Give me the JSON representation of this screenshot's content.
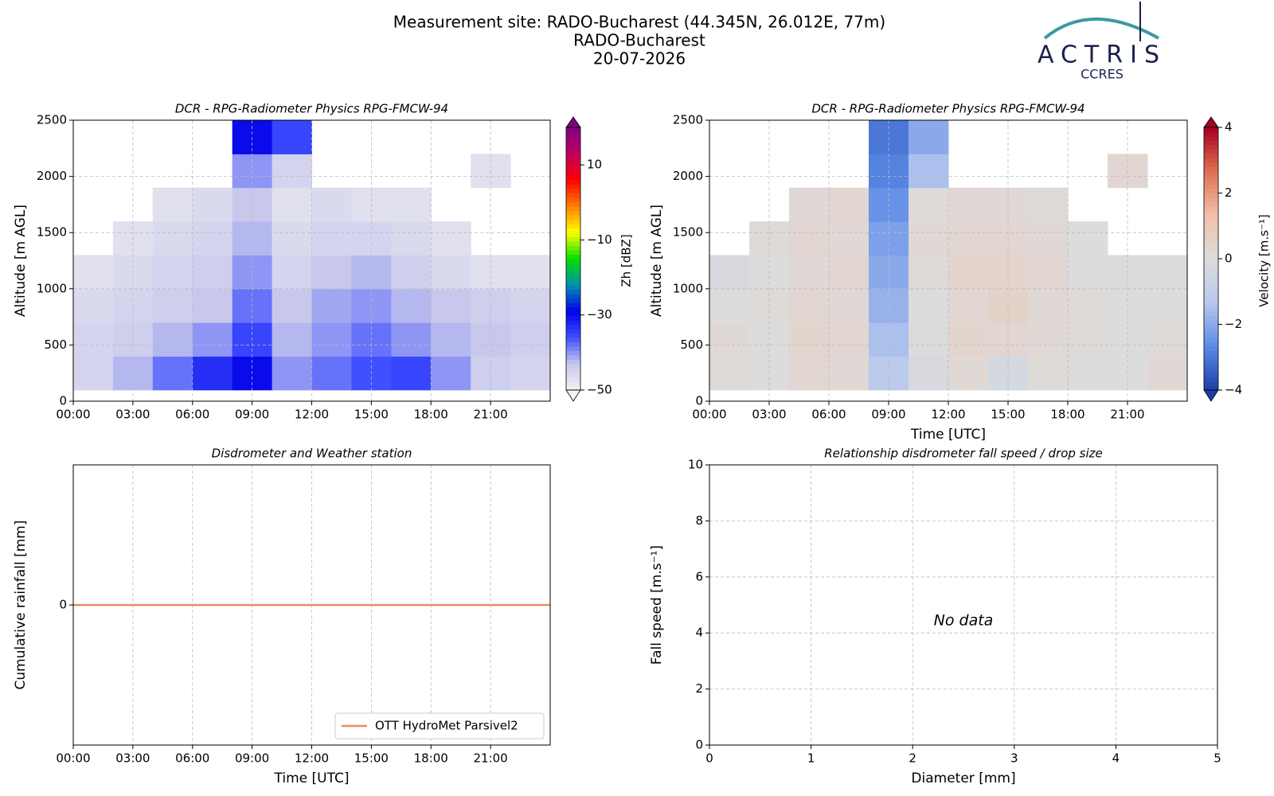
{
  "header": {
    "title": [
      "Measurement site: RADO-Bucharest (44.345N, 26.012E, 77m)",
      "RADO-Bucharest",
      "20-07-2026"
    ],
    "logo_name": "ACTRIS",
    "logo_sub": "CCRES"
  },
  "chart_data": [
    {
      "type": "heatmap",
      "title": "DCR - RPG-Radiometer Physics RPG-FMCW-94",
      "ylabel": "Altitude [m AGL]",
      "xlim": [
        0,
        24
      ],
      "xticks": [
        {
          "value": 0,
          "label": "00:00"
        },
        {
          "value": 3,
          "label": "03:00"
        },
        {
          "value": 6,
          "label": "06:00"
        },
        {
          "value": 9,
          "label": "09:00"
        },
        {
          "value": 12,
          "label": "12:00"
        },
        {
          "value": 15,
          "label": "15:00"
        },
        {
          "value": 18,
          "label": "18:00"
        },
        {
          "value": 21,
          "label": "21:00"
        }
      ],
      "ylim": [
        0,
        2500
      ],
      "yticks": [
        0,
        500,
        1000,
        1500,
        2000,
        2500
      ],
      "grid": true,
      "x_edges": [
        0,
        2,
        4,
        6,
        8,
        10,
        12,
        14,
        16,
        18,
        20,
        22,
        24
      ],
      "y_edges": [
        100,
        400,
        700,
        1000,
        1300,
        1600,
        1900,
        2200,
        2500
      ],
      "z": [
        [
          -45,
          -42,
          -38,
          -33,
          -30,
          -40,
          -38,
          -36,
          -35,
          -40,
          -44,
          -45
        ],
        [
          -45,
          -44,
          -42,
          -40,
          -35,
          -42,
          -40,
          -38,
          -40,
          -42,
          -43,
          -44
        ],
        [
          -46,
          -45,
          -44,
          -43,
          -38,
          -43,
          -41,
          -40,
          -42,
          -43,
          -44,
          -45
        ],
        [
          -47,
          -46,
          -45,
          -44,
          -40,
          -45,
          -43,
          -42,
          -44,
          -46,
          -47,
          -47
        ],
        [
          null,
          -47,
          -46,
          -45,
          -42,
          -46,
          -45,
          -45,
          -46,
          -47,
          null,
          null
        ],
        [
          null,
          null,
          -47,
          -46,
          -43,
          -47,
          -46,
          -47,
          -47,
          null,
          null,
          null
        ],
        [
          null,
          null,
          null,
          null,
          -40,
          -45,
          null,
          null,
          null,
          null,
          -47,
          null
        ],
        [
          null,
          null,
          null,
          null,
          -30,
          -35,
          null,
          null,
          null,
          null,
          null,
          null
        ]
      ],
      "clim": [
        -50,
        20
      ],
      "cticks": [
        {
          "value": -50,
          "label": "−50"
        },
        {
          "value": -30,
          "label": "−30"
        },
        {
          "value": -10,
          "label": "−10"
        },
        10
      ],
      "colorbar_label": "Zh [dBZ]",
      "colormap": [
        "#f2f2f2",
        "#c8c8ec",
        "#4050ff",
        "#0000e8",
        "#0090b0",
        "#00e000",
        "#ffff00",
        "#ff8000",
        "#ff0000",
        "#c00060",
        "#800080"
      ]
    },
    {
      "type": "heatmap",
      "title": "DCR - RPG-Radiometer Physics RPG-FMCW-94",
      "ylabel": "Altitude [m AGL]",
      "xlabel": "Time [UTC]",
      "xlim": [
        0,
        24
      ],
      "xticks": [
        {
          "value": 0,
          "label": "00:00"
        },
        {
          "value": 3,
          "label": "03:00"
        },
        {
          "value": 6,
          "label": "06:00"
        },
        {
          "value": 9,
          "label": "09:00"
        },
        {
          "value": 12,
          "label": "12:00"
        },
        {
          "value": 15,
          "label": "15:00"
        },
        {
          "value": 18,
          "label": "18:00"
        },
        {
          "value": 21,
          "label": "21:00"
        }
      ],
      "ylim": [
        0,
        2500
      ],
      "yticks": [
        0,
        500,
        1000,
        1500,
        2000,
        2500
      ],
      "grid": true,
      "x_edges": [
        0,
        2,
        4,
        6,
        8,
        10,
        12,
        14,
        16,
        18,
        20,
        22,
        24
      ],
      "y_edges": [
        100,
        400,
        700,
        1000,
        1300,
        1600,
        1900,
        2200,
        2500
      ],
      "z": [
        [
          0.1,
          0,
          0.3,
          0.2,
          -1.2,
          -0.2,
          0.2,
          -0.3,
          0.1,
          0,
          0,
          0.2
        ],
        [
          0.2,
          0,
          0.4,
          0.3,
          -1.5,
          -0.1,
          0.4,
          0.3,
          0.2,
          0.1,
          0,
          0.1
        ],
        [
          0,
          0.1,
          0.3,
          0.2,
          -1.8,
          0,
          0.3,
          0.5,
          0.2,
          0.1,
          0,
          0
        ],
        [
          -0.2,
          0,
          0.2,
          0.3,
          -2,
          0.1,
          0.4,
          0.4,
          0.3,
          0,
          -0.1,
          0
        ],
        [
          null,
          0.1,
          0.3,
          0.2,
          -2.2,
          0.2,
          0.3,
          0.3,
          0.2,
          0,
          null,
          null
        ],
        [
          null,
          null,
          0.2,
          0.3,
          -2.5,
          0.1,
          0.2,
          0.2,
          0.1,
          null,
          null,
          null
        ],
        [
          null,
          null,
          null,
          null,
          -2.8,
          -1.5,
          null,
          null,
          null,
          null,
          0.3,
          null
        ],
        [
          null,
          null,
          null,
          null,
          -3,
          -2,
          null,
          null,
          null,
          null,
          null,
          null
        ]
      ],
      "clim": [
        -4,
        4
      ],
      "cticks": [
        {
          "value": -4,
          "label": "−4"
        },
        {
          "value": -2,
          "label": "−2"
        },
        0,
        2,
        4
      ],
      "colorbar_label": "Velocity [m.s⁻¹]",
      "colormap": [
        "#1a3fa8",
        "#5b8ae6",
        "#b8c8ee",
        "#dcdcdc",
        "#f2c0aa",
        "#e07050",
        "#a50020"
      ]
    },
    {
      "type": "line",
      "title": "Disdrometer and Weather station",
      "ylabel": "Cumulative rainfall [mm]",
      "xlabel": "Time [UTC]",
      "xlim": [
        0,
        24
      ],
      "xticks": [
        {
          "value": 0,
          "label": "00:00"
        },
        {
          "value": 3,
          "label": "03:00"
        },
        {
          "value": 6,
          "label": "06:00"
        },
        {
          "value": 9,
          "label": "09:00"
        },
        {
          "value": 12,
          "label": "12:00"
        },
        {
          "value": 15,
          "label": "15:00"
        },
        {
          "value": 18,
          "label": "18:00"
        },
        {
          "value": 21,
          "label": "21:00"
        }
      ],
      "ylim": [
        -0.055,
        0.055
      ],
      "yticks": [
        0
      ],
      "grid": true,
      "legend": "lower right",
      "x": [
        0,
        24
      ],
      "series": [
        {
          "name": "OTT HydroMet Parsivel2",
          "color": "#ee8a5e",
          "values": [
            0,
            0
          ]
        }
      ]
    },
    {
      "type": "scatter",
      "title": "Relationship disdrometer fall speed / drop size",
      "ylabel": "Fall speed [m.s⁻¹]",
      "xlabel": "Diameter [mm]",
      "xlim": [
        0,
        5
      ],
      "xticks": [
        0,
        1,
        2,
        3,
        4,
        5
      ],
      "ylim": [
        0,
        10
      ],
      "yticks": [
        0,
        2,
        4,
        6,
        8,
        10
      ],
      "grid": true,
      "annotation": "No data"
    }
  ]
}
